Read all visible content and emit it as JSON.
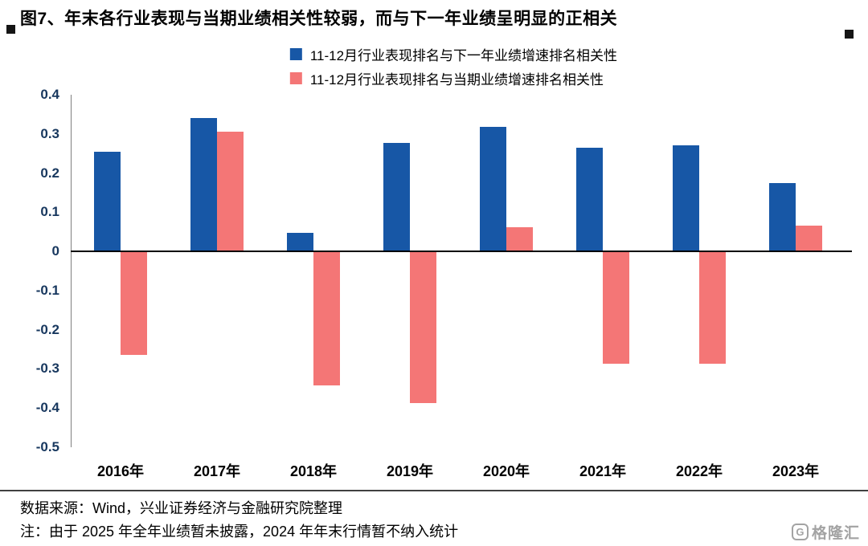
{
  "page": {
    "title": "图7、年末各行业表现与当期业绩相关性较弱，而与下一年业绩呈明显的正相关",
    "source_note": "数据来源：Wind，兴业证券经济与金融研究院整理",
    "footnote": "注：由于 2025 年全年业绩暂未披露，2024 年年末行情暂不纳入统计",
    "watermark": {
      "logo_letter": "G",
      "text": "格隆汇"
    }
  },
  "colors": {
    "series_next_year": "#1757a6",
    "series_current_year": "#f47676",
    "y_axis_label": "#17375e",
    "zero_line": "#000000",
    "divider": "#404040",
    "watermark_gray": "#a3a3a3"
  },
  "chart_data": {
    "type": "bar",
    "title": "",
    "categories": [
      "2016年",
      "2017年",
      "2018年",
      "2019年",
      "2020年",
      "2021年",
      "2022年",
      "2023年"
    ],
    "series": [
      {
        "name": "11-12月行业表现排名与下一年业绩增速排名相关性",
        "color": "#1757a6",
        "values": [
          0.255,
          0.34,
          0.047,
          0.277,
          0.318,
          0.265,
          0.27,
          0.175
        ]
      },
      {
        "name": "11-12月行业表现排名与当期业绩增速排名相关性",
        "color": "#f47676",
        "values": [
          -0.265,
          0.305,
          -0.342,
          -0.388,
          0.061,
          -0.287,
          -0.287,
          0.066
        ]
      }
    ],
    "ylim": [
      -0.5,
      0.4
    ],
    "yticks": [
      "0.4",
      "0.3",
      "0.2",
      "0.1",
      "0",
      "-0.1",
      "-0.2",
      "-0.3",
      "-0.4",
      "-0.5"
    ],
    "xlabel": "",
    "ylabel": "",
    "grid": false,
    "legend_position": "top-center"
  }
}
